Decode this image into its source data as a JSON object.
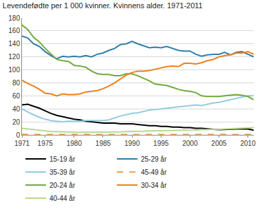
{
  "chart_data": {
    "type": "line",
    "title": "Levendefødte per 1 000 kvinner. Kvinnens alder. 1971-2011",
    "x": [
      1971,
      1972,
      1973,
      1974,
      1975,
      1976,
      1977,
      1978,
      1979,
      1980,
      1981,
      1982,
      1983,
      1984,
      1985,
      1986,
      1987,
      1988,
      1989,
      1990,
      1991,
      1992,
      1993,
      1994,
      1995,
      1996,
      1997,
      1998,
      1999,
      2000,
      2001,
      2002,
      2003,
      2004,
      2005,
      2006,
      2007,
      2008,
      2009,
      2010,
      2011
    ],
    "xlim": [
      1971,
      2011
    ],
    "xticks": [
      1971,
      1975,
      1980,
      1985,
      1990,
      1995,
      2000,
      2005,
      2010
    ],
    "ylim": [
      0,
      180
    ],
    "yticks": [
      0,
      20,
      40,
      60,
      80,
      100,
      120,
      140,
      160,
      180
    ],
    "grid": true,
    "legend": "bottom",
    "series": [
      {
        "name": "15-19 år",
        "color": "#000000",
        "line_style": "solid",
        "values": [
          46,
          47,
          44,
          41,
          37,
          33,
          30,
          28,
          26,
          24,
          23,
          21,
          20,
          19,
          18,
          18,
          18,
          17,
          17,
          17,
          16,
          15,
          14,
          14,
          13,
          13,
          12,
          12,
          11,
          11,
          10,
          10,
          9,
          8.5,
          8,
          8.5,
          9,
          9,
          9,
          9,
          7
        ]
      },
      {
        "name": "25-29 år",
        "color": "#2f7ea9",
        "line_style": "solid",
        "values": [
          152,
          149,
          140,
          136,
          128,
          122,
          117,
          121,
          120,
          121,
          120,
          122,
          120,
          124,
          126,
          130,
          133,
          139,
          140,
          144,
          140,
          137,
          134,
          135,
          134,
          136,
          133,
          130,
          129,
          129,
          124,
          121,
          123,
          124,
          124,
          127,
          123,
          127,
          128,
          124,
          120
        ]
      },
      {
        "name": "35-39 år",
        "color": "#93cddd",
        "line_style": "solid",
        "values": [
          40,
          35,
          31,
          27,
          24,
          22,
          21,
          20,
          21,
          21,
          21,
          22,
          22,
          22,
          22,
          23,
          26,
          29,
          31,
          33,
          34,
          36,
          38,
          39,
          40,
          41,
          42,
          43,
          44,
          45,
          46,
          45,
          47,
          49,
          50,
          52,
          54,
          56,
          58,
          60,
          60
        ]
      },
      {
        "name": "45-49 år",
        "color": "#f0a050",
        "line_style": "dashed",
        "values": [
          0.4,
          0.4,
          0.4,
          0.3,
          0.3,
          0.3,
          0.3,
          0.2,
          0.2,
          0.2,
          0.2,
          0.2,
          0.2,
          0.2,
          0.2,
          0.2,
          0.2,
          0.2,
          0.2,
          0.2,
          0.2,
          0.2,
          0.2,
          0.2,
          0.2,
          0.2,
          0.2,
          0.2,
          0.3,
          0.3,
          0.3,
          0.3,
          0.3,
          0.3,
          0.3,
          0.3,
          0.4,
          0.4,
          0.4,
          0.4,
          0.4
        ]
      },
      {
        "name": "20-24 år",
        "color": "#71a93a",
        "line_style": "solid",
        "values": [
          169,
          162,
          150,
          143,
          133,
          125,
          116,
          114,
          113,
          107,
          106,
          104,
          98,
          94,
          93,
          93,
          91,
          91,
          94,
          94,
          91,
          87,
          83,
          78,
          77,
          76,
          73,
          70,
          68,
          67,
          65,
          60,
          59,
          59,
          59,
          60,
          61,
          62,
          61,
          59,
          54
        ]
      },
      {
        "name": "30-34 år",
        "color": "#f07f17",
        "line_style": "solid",
        "values": [
          84,
          79,
          75,
          70,
          64,
          63,
          60,
          63,
          62,
          62,
          63,
          66,
          67,
          68,
          71,
          75,
          80,
          86,
          92,
          96,
          98,
          98,
          99,
          101,
          103,
          105,
          106,
          105,
          110,
          110,
          109,
          111,
          114,
          116,
          120,
          122,
          123,
          126,
          126,
          128,
          124
        ]
      },
      {
        "name": "40-44 år",
        "color": "#b9d88a",
        "line_style": "solid",
        "values": [
          10,
          9,
          8,
          7,
          6,
          5,
          5,
          4.5,
          4,
          4,
          4,
          4,
          4,
          4,
          4,
          4,
          4,
          4.5,
          5,
          5,
          5,
          5.5,
          6,
          6,
          6,
          6.5,
          6.5,
          7,
          7,
          7,
          7.5,
          8,
          8,
          8.5,
          8.5,
          9,
          9.5,
          10,
          10,
          10.5,
          11
        ]
      }
    ]
  }
}
